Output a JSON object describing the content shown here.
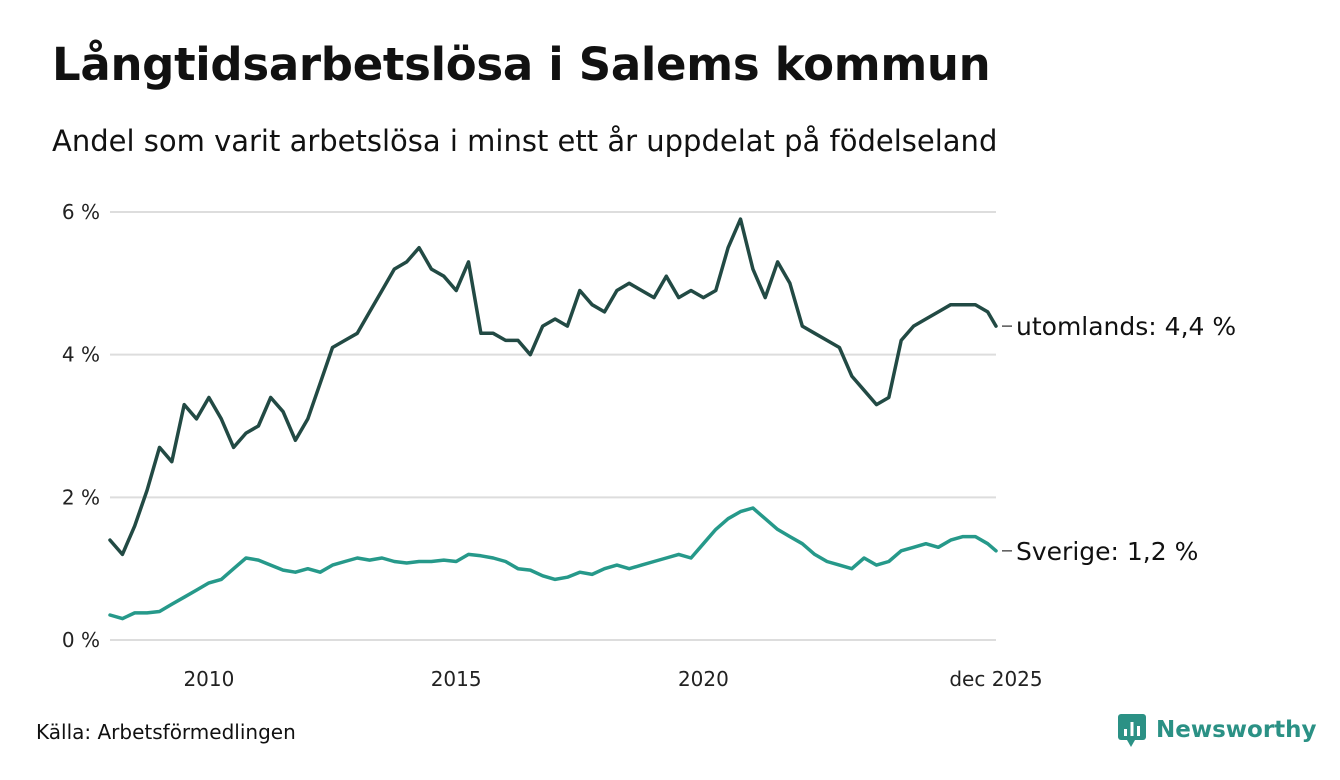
{
  "title": "Långtidsarbetslösa i Salems kommun",
  "subtitle": "Andel som varit arbetslösa i minst ett år uppdelat på födelseland",
  "source": "Källa: Arbetsförmedlingen",
  "logo": {
    "text": "Newsworthy",
    "icon": "newsworthy-logo-icon"
  },
  "colors": {
    "utomlands": "#224a44",
    "sverige": "#26998a",
    "grid": "#dddddd",
    "brand": "#2b9185"
  },
  "chart_data": {
    "type": "line",
    "title": "Långtidsarbetslösa i Salems kommun",
    "xlabel": "",
    "ylabel": "",
    "xlim": [
      2008.0,
      2025.917
    ],
    "ylim": [
      0,
      6
    ],
    "y_ticks": [
      0,
      2,
      4,
      6
    ],
    "y_tick_labels": [
      "0 %",
      "2 %",
      "4 %",
      "6 %"
    ],
    "x_ticks": [
      2010,
      2015,
      2020,
      2025.917
    ],
    "x_tick_labels": [
      "2010",
      "2015",
      "2020",
      "dec 2025"
    ],
    "grid": true,
    "series": [
      {
        "name": "utomlands",
        "label": "utomlands: 4,4 %",
        "color": "#224a44",
        "x": [
          2008.0,
          2008.25,
          2008.5,
          2008.75,
          2009.0,
          2009.25,
          2009.5,
          2009.75,
          2010.0,
          2010.25,
          2010.5,
          2010.75,
          2011.0,
          2011.25,
          2011.5,
          2011.75,
          2012.0,
          2012.25,
          2012.5,
          2012.75,
          2013.0,
          2013.25,
          2013.5,
          2013.75,
          2014.0,
          2014.25,
          2014.5,
          2014.75,
          2015.0,
          2015.25,
          2015.5,
          2015.75,
          2016.0,
          2016.25,
          2016.5,
          2016.75,
          2017.0,
          2017.25,
          2017.5,
          2017.75,
          2018.0,
          2018.25,
          2018.5,
          2018.75,
          2019.0,
          2019.25,
          2019.5,
          2019.75,
          2020.0,
          2020.25,
          2020.5,
          2020.75,
          2021.0,
          2021.25,
          2021.5,
          2021.75,
          2022.0,
          2022.25,
          2022.5,
          2022.75,
          2023.0,
          2023.25,
          2023.5,
          2023.75,
          2024.0,
          2024.25,
          2024.5,
          2024.75,
          2025.0,
          2025.25,
          2025.5,
          2025.75,
          2025.917
        ],
        "values": [
          1.4,
          1.2,
          1.6,
          2.1,
          2.7,
          2.5,
          3.3,
          3.1,
          3.4,
          3.1,
          2.7,
          2.9,
          3.0,
          3.4,
          3.2,
          2.8,
          3.1,
          3.6,
          4.1,
          4.2,
          4.3,
          4.6,
          4.9,
          5.2,
          5.3,
          5.5,
          5.2,
          5.1,
          4.9,
          5.3,
          4.3,
          4.3,
          4.2,
          4.2,
          4.0,
          4.4,
          4.5,
          4.4,
          4.9,
          4.7,
          4.6,
          4.9,
          5.0,
          4.9,
          4.8,
          5.1,
          4.8,
          4.9,
          4.8,
          4.9,
          5.5,
          5.9,
          5.2,
          4.8,
          5.3,
          5.0,
          4.4,
          4.3,
          4.2,
          4.1,
          3.7,
          3.5,
          3.3,
          3.4,
          4.2,
          4.4,
          4.5,
          4.6,
          4.7,
          4.7,
          4.7,
          4.6,
          4.4
        ]
      },
      {
        "name": "sverige",
        "label": "Sverige: 1,2 %",
        "color": "#26998a",
        "x": [
          2008.0,
          2008.25,
          2008.5,
          2008.75,
          2009.0,
          2009.25,
          2009.5,
          2009.75,
          2010.0,
          2010.25,
          2010.5,
          2010.75,
          2011.0,
          2011.25,
          2011.5,
          2011.75,
          2012.0,
          2012.25,
          2012.5,
          2012.75,
          2013.0,
          2013.25,
          2013.5,
          2013.75,
          2014.0,
          2014.25,
          2014.5,
          2014.75,
          2015.0,
          2015.25,
          2015.5,
          2015.75,
          2016.0,
          2016.25,
          2016.5,
          2016.75,
          2017.0,
          2017.25,
          2017.5,
          2017.75,
          2018.0,
          2018.25,
          2018.5,
          2018.75,
          2019.0,
          2019.25,
          2019.5,
          2019.75,
          2020.0,
          2020.25,
          2020.5,
          2020.75,
          2021.0,
          2021.25,
          2021.5,
          2021.75,
          2022.0,
          2022.25,
          2022.5,
          2022.75,
          2023.0,
          2023.25,
          2023.5,
          2023.75,
          2024.0,
          2024.25,
          2024.5,
          2024.75,
          2025.0,
          2025.25,
          2025.5,
          2025.75,
          2025.917
        ],
        "values": [
          0.35,
          0.3,
          0.38,
          0.38,
          0.4,
          0.5,
          0.6,
          0.7,
          0.8,
          0.85,
          1.0,
          1.15,
          1.12,
          1.05,
          0.98,
          0.95,
          1.0,
          0.95,
          1.05,
          1.1,
          1.15,
          1.12,
          1.15,
          1.1,
          1.08,
          1.1,
          1.1,
          1.12,
          1.1,
          1.2,
          1.18,
          1.15,
          1.1,
          1.0,
          0.98,
          0.9,
          0.85,
          0.88,
          0.95,
          0.92,
          1.0,
          1.05,
          1.0,
          1.05,
          1.1,
          1.15,
          1.2,
          1.15,
          1.35,
          1.55,
          1.7,
          1.8,
          1.85,
          1.7,
          1.55,
          1.45,
          1.35,
          1.2,
          1.1,
          1.05,
          1.0,
          1.15,
          1.05,
          1.1,
          1.25,
          1.3,
          1.35,
          1.3,
          1.4,
          1.45,
          1.45,
          1.35,
          1.25
        ]
      }
    ]
  }
}
